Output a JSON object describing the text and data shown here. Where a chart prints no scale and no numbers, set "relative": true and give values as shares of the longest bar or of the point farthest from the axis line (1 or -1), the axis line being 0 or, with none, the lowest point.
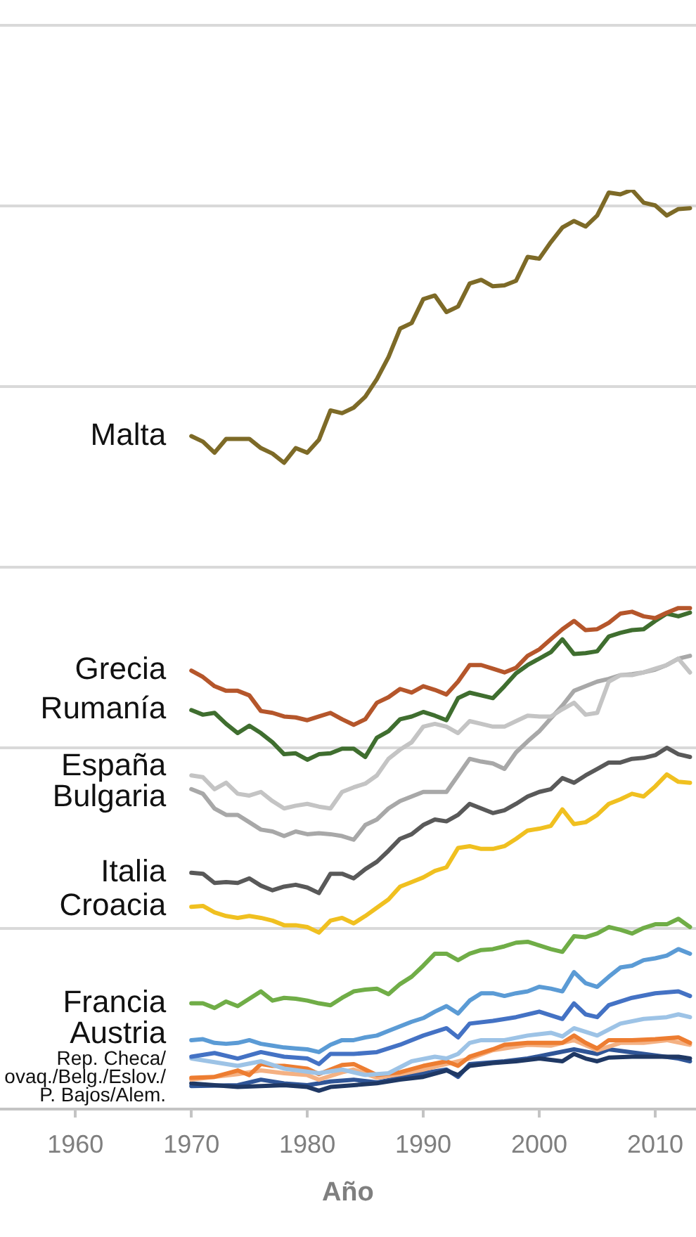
{
  "chart_data": {
    "type": "line",
    "xlabel": "Año",
    "relative": true,
    "grid": "y",
    "xlim": [
      1953.5,
      2013.5
    ],
    "xticks": [
      1960,
      1970,
      1980,
      1990,
      2000,
      2010
    ],
    "x": [
      1970,
      1971,
      1972,
      1973,
      1974,
      1975,
      1976,
      1977,
      1978,
      1979,
      1980,
      1981,
      1982,
      1983,
      1984,
      1985,
      1986,
      1987,
      1988,
      1989,
      1990,
      1991,
      1992,
      1993,
      1994,
      1995,
      1996,
      1997,
      1998,
      1999,
      2000,
      2001,
      2002,
      2003,
      2004,
      2005,
      2006,
      2007,
      2008,
      2009,
      2010,
      2011,
      2012,
      2013
    ],
    "annotations": [
      {
        "text": "Rep. Checa/\novaq./Belg./Eslov./\nP. Bajos/Alem.",
        "x": 1970,
        "y": 0.04
      }
    ],
    "series": [
      {
        "name": "Malta",
        "color": "#7d6a27",
        "values": [
          0.732,
          0.726,
          0.714,
          0.729,
          0.729,
          0.729,
          0.719,
          0.713,
          0.703,
          0.719,
          0.714,
          0.728,
          0.76,
          0.757,
          0.763,
          0.775,
          0.794,
          0.818,
          0.849,
          0.855,
          0.881,
          0.885,
          0.867,
          0.873,
          0.898,
          0.902,
          0.895,
          0.896,
          0.901,
          0.927,
          0.925,
          0.943,
          0.959,
          0.966,
          0.96,
          0.972,
          0.997,
          0.995,
          1,
          0.986,
          0.983,
          0.972,
          0.979,
          0.98
        ]
      },
      {
        "name": "Grecia",
        "color": "#b5562b",
        "values": [
          0.477,
          0.47,
          0.46,
          0.455,
          0.455,
          0.45,
          0.433,
          0.431,
          0.427,
          0.426,
          0.423,
          0.427,
          0.431,
          0.424,
          0.418,
          0.424,
          0.442,
          0.448,
          0.457,
          0.453,
          0.46,
          0.456,
          0.451,
          0.465,
          0.483,
          0.483,
          0.479,
          0.475,
          0.48,
          0.493,
          0.5,
          0.511,
          0.522,
          0.531,
          0.521,
          0.522,
          0.529,
          0.539,
          0.541,
          0.536,
          0.534,
          0.54,
          0.545,
          0.545
        ]
      },
      {
        "name": "Rumanía",
        "color": "#3f6e2f",
        "values": [
          0.434,
          0.429,
          0.431,
          0.419,
          0.409,
          0.417,
          0.409,
          0.399,
          0.386,
          0.387,
          0.38,
          0.386,
          0.387,
          0.392,
          0.392,
          0.383,
          0.404,
          0.411,
          0.424,
          0.427,
          0.432,
          0.428,
          0.423,
          0.447,
          0.453,
          0.45,
          0.447,
          0.46,
          0.474,
          0.483,
          0.49,
          0.497,
          0.511,
          0.495,
          0.496,
          0.498,
          0.514,
          0.518,
          0.521,
          0.522,
          0.531,
          0.539,
          0.536,
          0.54
        ]
      },
      {
        "name": "España",
        "color": "#c4c4c4",
        "values": [
          0.363,
          0.361,
          0.348,
          0.355,
          0.343,
          0.341,
          0.345,
          0.335,
          0.327,
          0.33,
          0.332,
          0.329,
          0.327,
          0.345,
          0.35,
          0.354,
          0.363,
          0.381,
          0.391,
          0.399,
          0.416,
          0.419,
          0.416,
          0.409,
          0.422,
          0.419,
          0.416,
          0.416,
          0.422,
          0.428,
          0.427,
          0.427,
          0.435,
          0.442,
          0.429,
          0.431,
          0.465,
          0.472,
          0.472,
          0.475,
          0.479,
          0.483,
          0.49,
          0.475
        ]
      },
      {
        "name": "Bulgaria",
        "color": "#a8a8a8",
        "values": [
          0.348,
          0.343,
          0.327,
          0.32,
          0.32,
          0.312,
          0.304,
          0.302,
          0.297,
          0.302,
          0.299,
          0.3,
          0.299,
          0.297,
          0.293,
          0.309,
          0.315,
          0.327,
          0.335,
          0.34,
          0.345,
          0.345,
          0.345,
          0.363,
          0.381,
          0.378,
          0.376,
          0.37,
          0.388,
          0.4,
          0.411,
          0.425,
          0.439,
          0.455,
          0.46,
          0.465,
          0.468,
          0.472,
          0.473,
          0.475,
          0.478,
          0.483,
          0.49,
          0.493
        ]
      },
      {
        "name": "Italia",
        "color": "#595959",
        "values": [
          0.257,
          0.256,
          0.246,
          0.247,
          0.246,
          0.251,
          0.243,
          0.238,
          0.242,
          0.244,
          0.241,
          0.235,
          0.256,
          0.256,
          0.251,
          0.261,
          0.269,
          0.281,
          0.294,
          0.299,
          0.309,
          0.315,
          0.313,
          0.32,
          0.332,
          0.327,
          0.322,
          0.325,
          0.332,
          0.34,
          0.345,
          0.348,
          0.36,
          0.355,
          0.363,
          0.37,
          0.377,
          0.377,
          0.381,
          0.382,
          0.385,
          0.393,
          0.386,
          0.383
        ]
      },
      {
        "name": "Croacia",
        "color": "#f0c020",
        "values": [
          0.22,
          0.221,
          0.214,
          0.21,
          0.208,
          0.21,
          0.208,
          0.205,
          0.2,
          0.2,
          0.198,
          0.192,
          0.205,
          0.208,
          0.202,
          0.21,
          0.219,
          0.228,
          0.242,
          0.247,
          0.252,
          0.259,
          0.263,
          0.284,
          0.286,
          0.283,
          0.283,
          0.286,
          0.294,
          0.303,
          0.305,
          0.308,
          0.326,
          0.31,
          0.312,
          0.32,
          0.332,
          0.337,
          0.343,
          0.34,
          0.351,
          0.364,
          0.356,
          0.355
        ]
      },
      {
        "name": "Francia",
        "color": "#70ad47",
        "values": [
          0.115,
          0.115,
          0.11,
          0.117,
          0.112,
          0.12,
          0.128,
          0.118,
          0.121,
          0.12,
          0.118,
          0.115,
          0.113,
          0.121,
          0.128,
          0.13,
          0.131,
          0.125,
          0.136,
          0.144,
          0.156,
          0.169,
          0.169,
          0.162,
          0.169,
          0.173,
          0.174,
          0.177,
          0.181,
          0.182,
          0.178,
          0.174,
          0.171,
          0.188,
          0.187,
          0.191,
          0.198,
          0.195,
          0.191,
          0.197,
          0.201,
          0.201,
          0.207,
          0.198
        ]
      },
      {
        "name": "Austria",
        "color": "#5b9bd5",
        "values": [
          0.075,
          0.076,
          0.072,
          0.071,
          0.072,
          0.075,
          0.071,
          0.069,
          0.067,
          0.066,
          0.065,
          0.062,
          0.07,
          0.075,
          0.075,
          0.078,
          0.08,
          0.085,
          0.09,
          0.095,
          0.099,
          0.106,
          0.112,
          0.104,
          0.118,
          0.126,
          0.126,
          0.123,
          0.126,
          0.128,
          0.133,
          0.131,
          0.128,
          0.149,
          0.137,
          0.133,
          0.144,
          0.154,
          0.156,
          0.162,
          0.164,
          0.167,
          0.174,
          0.169
        ]
      },
      {
        "color": "#4472c4",
        "x": [
          1970,
          1972,
          1974,
          1976,
          1978,
          1980,
          1981,
          1982,
          1984,
          1986,
          1988,
          1990,
          1992,
          1993,
          1994,
          1996,
          1998,
          2000,
          2002,
          2003,
          2004,
          2005,
          2006,
          2008,
          2010,
          2012,
          2013
        ],
        "values": [
          0.057,
          0.061,
          0.055,
          0.062,
          0.057,
          0.055,
          0.049,
          0.06,
          0.06,
          0.062,
          0.07,
          0.08,
          0.088,
          0.078,
          0.093,
          0.096,
          0.1,
          0.106,
          0.098,
          0.115,
          0.103,
          0.1,
          0.113,
          0.121,
          0.126,
          0.128,
          0.123
        ]
      },
      {
        "color": "#9dc3e6",
        "x": [
          1970,
          1974,
          1976,
          1978,
          1981,
          1983,
          1985,
          1987,
          1989,
          1991,
          1992,
          1993,
          1994,
          1995,
          1997,
          1999,
          2001,
          2002,
          2003,
          2005,
          2007,
          2009,
          2011,
          2012,
          2013
        ],
        "values": [
          0.055,
          0.047,
          0.052,
          0.044,
          0.039,
          0.043,
          0.037,
          0.039,
          0.052,
          0.057,
          0.055,
          0.06,
          0.072,
          0.075,
          0.075,
          0.08,
          0.083,
          0.079,
          0.088,
          0.08,
          0.093,
          0.098,
          0.1,
          0.103,
          0.1
        ]
      },
      {
        "color": "#ed7d31",
        "x": [
          1970,
          1972,
          1974,
          1975,
          1976,
          1977,
          1978,
          1980,
          1981,
          1982,
          1983,
          1984,
          1985,
          1986,
          1988,
          1990,
          1992,
          1993,
          1994,
          1996,
          1997,
          1999,
          2001,
          2002,
          2003,
          2004,
          2005,
          2006,
          2008,
          2010,
          2012,
          2013
        ],
        "values": [
          0.034,
          0.035,
          0.042,
          0.037,
          0.049,
          0.047,
          0.047,
          0.044,
          0.038,
          0.043,
          0.048,
          0.049,
          0.043,
          0.037,
          0.04,
          0.047,
          0.052,
          0.047,
          0.057,
          0.065,
          0.07,
          0.072,
          0.072,
          0.072,
          0.08,
          0.072,
          0.066,
          0.075,
          0.075,
          0.076,
          0.078,
          0.072
        ]
      },
      {
        "color": "#f4b183",
        "x": [
          1970,
          1974,
          1976,
          1978,
          1980,
          1981,
          1983,
          1984,
          1986,
          1988,
          1990,
          1992,
          1994,
          1996,
          1999,
          2001,
          2003,
          2005,
          2007,
          2009,
          2011,
          2013
        ],
        "values": [
          0.032,
          0.038,
          0.042,
          0.039,
          0.037,
          0.032,
          0.04,
          0.043,
          0.034,
          0.038,
          0.043,
          0.049,
          0.055,
          0.064,
          0.07,
          0.069,
          0.075,
          0.064,
          0.072,
          0.072,
          0.075,
          0.07
        ]
      },
      {
        "color": "#1f3864",
        "x": [
          1970,
          1972,
          1974,
          1976,
          1978,
          1980,
          1981,
          1982,
          1984,
          1986,
          1988,
          1990,
          1992,
          1993,
          1994,
          1996,
          1998,
          2000,
          2002,
          2003,
          2004,
          2005,
          2006,
          2008,
          2010,
          2012,
          2013
        ],
        "values": [
          0.028,
          0.026,
          0.024,
          0.025,
          0.026,
          0.024,
          0.02,
          0.024,
          0.026,
          0.028,
          0.032,
          0.035,
          0.042,
          0.037,
          0.047,
          0.05,
          0.052,
          0.055,
          0.052,
          0.06,
          0.055,
          0.052,
          0.056,
          0.057,
          0.057,
          0.057,
          0.055
        ]
      },
      {
        "color": "#2f5597",
        "x": [
          1970,
          1974,
          1976,
          1978,
          1980,
          1982,
          1984,
          1986,
          1988,
          1990,
          1992,
          1993,
          1994,
          1997,
          1999,
          2001,
          2003,
          2005,
          2006,
          2009,
          2012,
          2013
        ],
        "values": [
          0.025,
          0.026,
          0.032,
          0.028,
          0.026,
          0.03,
          0.032,
          0.029,
          0.034,
          0.039,
          0.043,
          0.035,
          0.049,
          0.052,
          0.055,
          0.06,
          0.065,
          0.06,
          0.065,
          0.06,
          0.055,
          0.052
        ]
      }
    ]
  }
}
